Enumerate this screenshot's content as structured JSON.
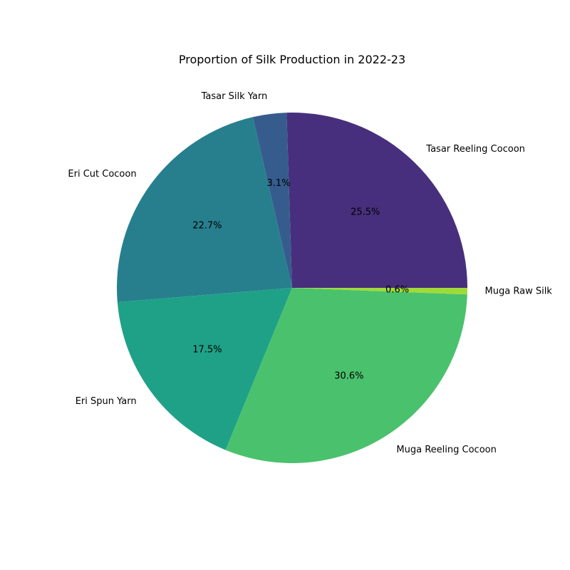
{
  "chart_data": {
    "type": "pie",
    "title": "Proportion of Silk Production in 2022-23",
    "start_angle_deg": 0,
    "direction": "counterclockwise",
    "slices": [
      {
        "label": "Tasar Reeling Cocoon",
        "value": 25.5,
        "pct_label": "25.5%",
        "color": "#472f7d"
      },
      {
        "label": "Tasar Silk Yarn",
        "value": 3.1,
        "pct_label": "3.1%",
        "color": "#365c8d"
      },
      {
        "label": "Eri Cut Cocoon",
        "value": 22.7,
        "pct_label": "22.7%",
        "color": "#277f8e"
      },
      {
        "label": "Eri Spun Yarn",
        "value": 17.5,
        "pct_label": "17.5%",
        "color": "#1fa187"
      },
      {
        "label": "Muga Reeling Cocoon",
        "value": 30.6,
        "pct_label": "30.6%",
        "color": "#4ac16d"
      },
      {
        "label": "Muga Raw Silk",
        "value": 0.6,
        "pct_label": "0.6%",
        "color": "#a0da39"
      }
    ]
  }
}
